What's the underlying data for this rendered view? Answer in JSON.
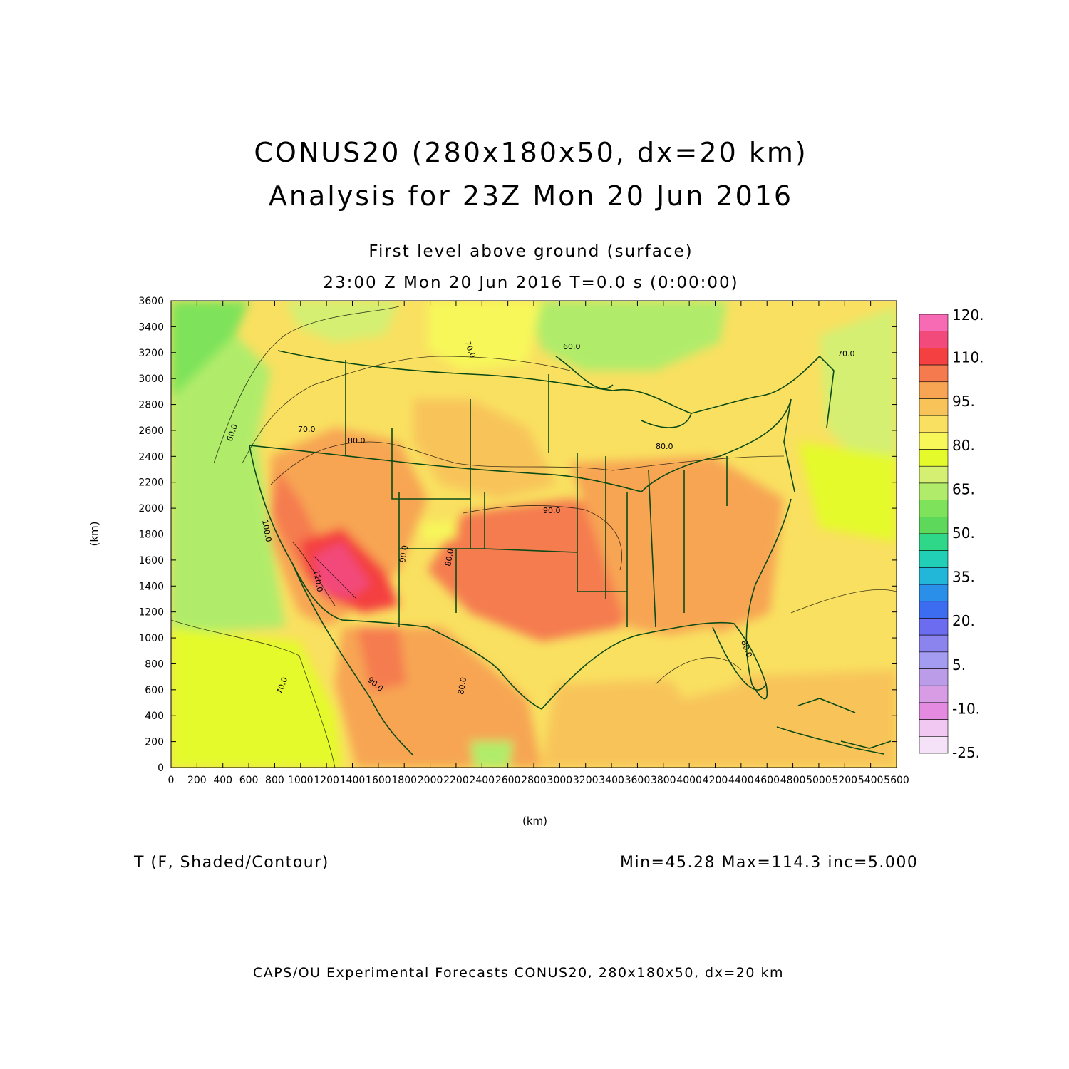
{
  "title_line1": "CONUS20 (280x180x50, dx=20 km)",
  "title_line2": "Analysis for 23Z Mon 20 Jun 2016",
  "subtitle_level": "First level above ground (surface)",
  "subtitle_time": "23:00 Z Mon 20 Jun 2016    T=0.0 s (0:00:00)",
  "variable_label": "T (F, Shaded/Contour)",
  "stats_label": "Min=45.28  Max=114.3  inc=5.000",
  "footer": "CAPS/OU Experimental Forecasts  CONUS20, 280x180x50, dx=20 km",
  "x_axis": {
    "unit": "(km)",
    "range": [
      0,
      5600
    ],
    "ticks": [
      0,
      200,
      400,
      600,
      800,
      1000,
      1200,
      1400,
      1600,
      1800,
      2000,
      2200,
      2400,
      2600,
      2800,
      3000,
      3200,
      3400,
      3600,
      3800,
      4000,
      4200,
      4400,
      4600,
      4800,
      5000,
      5200,
      5400,
      5600
    ]
  },
  "y_axis": {
    "unit": "(km)",
    "range": [
      0,
      3600
    ],
    "ticks": [
      0,
      200,
      400,
      600,
      800,
      1000,
      1200,
      1400,
      1600,
      1800,
      2000,
      2200,
      2400,
      2600,
      2800,
      3000,
      3200,
      3400,
      3600
    ]
  },
  "colorbar": {
    "labels": [
      "120.",
      "110.",
      "95.",
      "80.",
      "65.",
      "50.",
      "35.",
      "20.",
      "5.",
      "-10.",
      "-25."
    ],
    "colors_top_to_bottom": [
      "#f76ab4",
      "#f24a7a",
      "#f44040",
      "#f57b4f",
      "#f7a552",
      "#f8c45a",
      "#f9e060",
      "#f7f75a",
      "#e4fa2a",
      "#d4ef72",
      "#b0ec6a",
      "#7ee35a",
      "#5ed85a",
      "#2ed888",
      "#20cfb5",
      "#22b7d8",
      "#2a8fe8",
      "#3c6cf0",
      "#6b6cf0",
      "#8c84ee",
      "#a49cf0",
      "#bb9ce8",
      "#d79ce4",
      "#e48ae0",
      "#f0c8f2",
      "#f6e2f8"
    ]
  },
  "contour_labels": [
    "60.0",
    "70.0",
    "80.0",
    "90.0",
    "100.0",
    "110.0"
  ],
  "map": {
    "background_color": "#f9e060",
    "boundary_color": "#0a4a14"
  }
}
